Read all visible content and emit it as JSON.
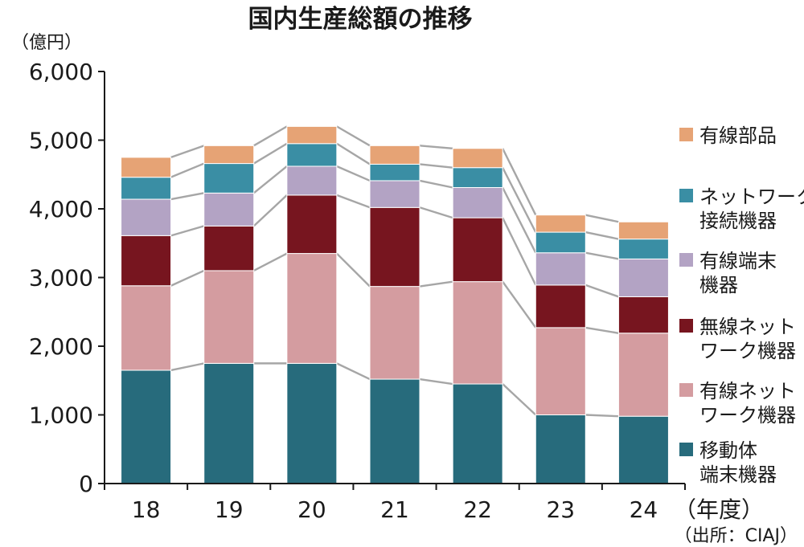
{
  "chart_data": {
    "type": "bar",
    "stacked": true,
    "title": "国内生産総額の推移",
    "unit": "（億円）",
    "x_unit": "（年度）",
    "source": "（出所：CIAJ）",
    "categories": [
      "18",
      "19",
      "20",
      "21",
      "22",
      "23",
      "24"
    ],
    "ylim": [
      0,
      6000
    ],
    "yticks": [
      "0",
      "1,000",
      "2,000",
      "3,000",
      "4,000",
      "5,000",
      "6,000"
    ],
    "ytick_values": [
      0,
      1000,
      2000,
      3000,
      4000,
      5000,
      6000
    ],
    "grid": false,
    "legend_placement": "right",
    "series": [
      {
        "name": "移動体端末機器",
        "label_lines": [
          "移動体",
          "端末機器"
        ],
        "color": "#276b7c",
        "values": [
          1650,
          1750,
          1750,
          1520,
          1450,
          1000,
          980
        ]
      },
      {
        "name": "有線ネットワーク機器",
        "label_lines": [
          "有線ネット",
          "ワーク機器"
        ],
        "color": "#d49ca0",
        "values": [
          1230,
          1350,
          1600,
          1350,
          1490,
          1270,
          1210
        ]
      },
      {
        "name": "無線ネットワーク機器",
        "label_lines": [
          "無線ネット",
          "ワーク機器"
        ],
        "color": "#77151f",
        "values": [
          730,
          650,
          850,
          1150,
          930,
          620,
          530
        ]
      },
      {
        "name": "有線端末機器",
        "label_lines": [
          "有線端末",
          "機器"
        ],
        "color": "#b3a3c4",
        "values": [
          530,
          480,
          420,
          390,
          440,
          470,
          550
        ]
      },
      {
        "name": "ネットワーク接続機器",
        "label_lines": [
          "ネットワーク",
          "接続機器"
        ],
        "color": "#3a8ea4",
        "values": [
          320,
          430,
          330,
          240,
          290,
          300,
          290
        ]
      },
      {
        "name": "有線部品",
        "label_lines": [
          "有線部品"
        ],
        "color": "#e6a375",
        "values": [
          290,
          260,
          250,
          270,
          280,
          250,
          250
        ]
      }
    ]
  }
}
